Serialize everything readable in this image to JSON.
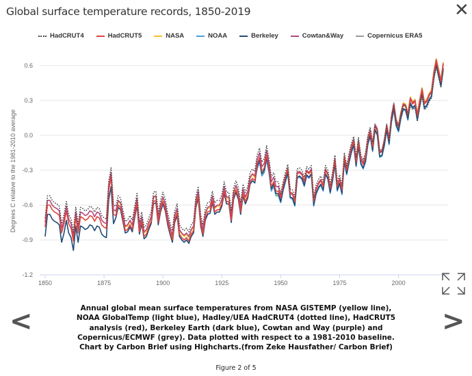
{
  "header": {
    "title": "Global surface temperature records, 1850-2019",
    "close_icon": "close-icon"
  },
  "caption": "Annual global mean surface temperatures from NASA GISTEMP (yellow line), NOAA GlobalTemp (light blue), Hadley/UEA HadCRUT4 (dotted line), HadCRUT5 analysis (red), Berkeley Earth (dark blue), Cowtan and Way (purple) and Copernicus/ECMWF (grey). Data plotted with respect to a 1981-2010 baseline. Chart by Carbon Brief using Highcharts.(from Zeke Hausfather/ Carbon Brief)",
  "figure_counter": "Figure 2 of 5",
  "nav": {
    "prev": "<",
    "next": ">"
  },
  "chart_data": {
    "type": "line",
    "title": "Global surface temperature records, 1850-2019",
    "xlabel": "",
    "ylabel": "Degrees C relative to the 1981-2010 average",
    "xlim": [
      1850,
      2019
    ],
    "ylim": [
      -1.2,
      0.6
    ],
    "xticks": [
      "1850",
      "1875",
      "1900",
      "1925",
      "1950",
      "1975",
      "2000"
    ],
    "yticks": [
      "0.6",
      "0.3",
      "0.0",
      "-0.3",
      "-0.6",
      "-0.9",
      "-1.2"
    ],
    "grid": true,
    "legend_position": "top",
    "reference_series": {
      "name": "HadCRUT5",
      "start_year": 1850,
      "values": [
        -0.79,
        -0.6,
        -0.6,
        -0.64,
        -0.66,
        -0.67,
        -0.69,
        -0.84,
        -0.76,
        -0.65,
        -0.76,
        -0.8,
        -0.91,
        -0.7,
        -0.84,
        -0.7,
        -0.71,
        -0.73,
        -0.72,
        -0.69,
        -0.7,
        -0.74,
        -0.7,
        -0.71,
        -0.77,
        -0.79,
        -0.8,
        -0.47,
        -0.36,
        -0.68,
        -0.69,
        -0.6,
        -0.62,
        -0.72,
        -0.82,
        -0.81,
        -0.77,
        -0.81,
        -0.69,
        -0.58,
        -0.83,
        -0.74,
        -0.87,
        -0.85,
        -0.79,
        -0.74,
        -0.57,
        -0.56,
        -0.75,
        -0.64,
        -0.57,
        -0.63,
        -0.75,
        -0.83,
        -0.9,
        -0.73,
        -0.67,
        -0.85,
        -0.88,
        -0.9,
        -0.88,
        -0.91,
        -0.85,
        -0.82,
        -0.6,
        -0.52,
        -0.76,
        -0.85,
        -0.71,
        -0.66,
        -0.65,
        -0.56,
        -0.66,
        -0.64,
        -0.64,
        -0.59,
        -0.48,
        -0.57,
        -0.57,
        -0.73,
        -0.53,
        -0.47,
        -0.53,
        -0.66,
        -0.5,
        -0.57,
        -0.52,
        -0.4,
        -0.37,
        -0.39,
        -0.25,
        -0.19,
        -0.31,
        -0.28,
        -0.17,
        -0.28,
        -0.44,
        -0.4,
        -0.48,
        -0.48,
        -0.54,
        -0.44,
        -0.36,
        -0.29,
        -0.5,
        -0.51,
        -0.57,
        -0.33,
        -0.32,
        -0.34,
        -0.4,
        -0.31,
        -0.33,
        -0.3,
        -0.57,
        -0.47,
        -0.42,
        -0.39,
        -0.44,
        -0.3,
        -0.34,
        -0.46,
        -0.36,
        -0.21,
        -0.44,
        -0.38,
        -0.47,
        -0.19,
        -0.3,
        -0.2,
        -0.11,
        -0.05,
        -0.23,
        -0.06,
        -0.21,
        -0.25,
        -0.19,
        -0.04,
        0.03,
        -0.1,
        0.08,
        0.04,
        -0.15,
        -0.14,
        -0.05,
        0.08,
        -0.04,
        0.15,
        0.26,
        0.12,
        0.07,
        0.18,
        0.26,
        0.25,
        0.17,
        0.31,
        0.27,
        0.29,
        0.17,
        0.29,
        0.39,
        0.27,
        0.29,
        0.34,
        0.37,
        0.53,
        0.64,
        0.55,
        0.46,
        0.61
      ]
    },
    "series": [
      {
        "name": "HadCRUT4",
        "color": "#444444",
        "dash": "dotted",
        "start_year": 1850,
        "offsets_vs_HadCRUT5": [
          [
            1850,
            0.08
          ],
          [
            1950,
            0.04
          ],
          [
            1990,
            0.0
          ],
          [
            2005,
            -0.05
          ]
        ]
      },
      {
        "name": "HadCRUT5",
        "color": "#e0443c",
        "dash": "solid",
        "start_year": 1850,
        "offsets_vs_HadCRUT5": [
          [
            1850,
            0
          ]
        ]
      },
      {
        "name": "NASA",
        "color": "#f3c02d",
        "dash": "solid",
        "start_year": 1880,
        "offsets_vs_HadCRUT5": [
          [
            1880,
            0.03
          ],
          [
            1940,
            -0.03
          ],
          [
            2000,
            0.02
          ]
        ]
      },
      {
        "name": "NOAA",
        "color": "#4a9ed8",
        "dash": "solid",
        "start_year": 1880,
        "offsets_vs_HadCRUT5": [
          [
            1880,
            0.0
          ],
          [
            1940,
            -0.04
          ]
        ]
      },
      {
        "name": "Berkeley",
        "color": "#1f4a78",
        "dash": "solid",
        "start_year": 1850,
        "offsets_vs_HadCRUT5": [
          [
            1850,
            -0.08
          ],
          [
            1880,
            -0.02
          ],
          [
            1950,
            -0.03
          ]
        ]
      },
      {
        "name": "Cowtan&Way",
        "color": "#b4477d",
        "dash": "solid",
        "start_year": 1850,
        "offsets_vs_HadCRUT5": [
          [
            1850,
            0.04
          ],
          [
            1950,
            0.01
          ]
        ]
      },
      {
        "name": "Copernicus ERA5",
        "color": "#9a9a9a",
        "dash": "solid",
        "start_year": 1979,
        "offsets_vs_HadCRUT5": [
          [
            1979,
            0.02
          ]
        ]
      }
    ]
  }
}
